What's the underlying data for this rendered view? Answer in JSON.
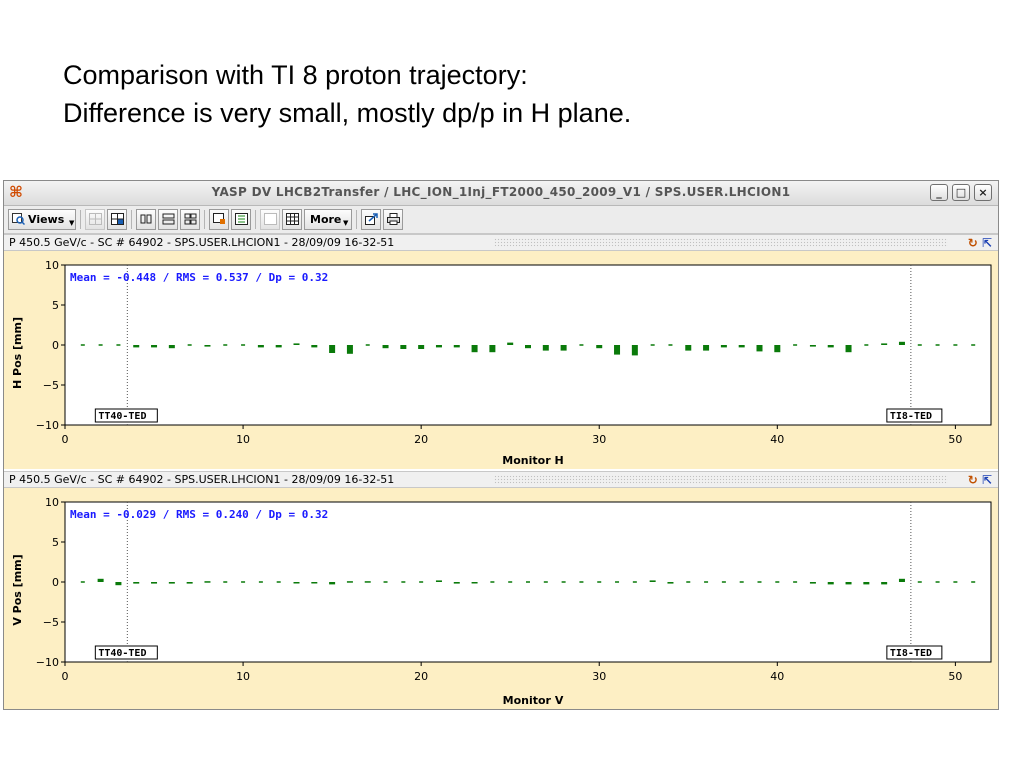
{
  "caption": {
    "line1": "Comparison with TI 8 proton trajectory:",
    "line2": "Difference is very small, mostly dp/p in H plane."
  },
  "window": {
    "title": "YASP DV LHCB2Transfer / LHC_ION_1Inj_FT2000_450_2009_V1 / SPS.USER.LHCION1",
    "icon": "yasp-app-icon",
    "buttons": {
      "minimize": "_",
      "maximize": "□",
      "close": "×"
    }
  },
  "toolbar": {
    "views_label": "Views",
    "more_label": "More"
  },
  "panels": [
    {
      "id": "h",
      "header": "P 450.5 GeV/c - SC # 64902 - SPS.USER.LHCION1 - 28/09/09 16-32-51",
      "stats": "Mean =  -0.448 / RMS =   0.537 / Dp =   0.32",
      "xlabel": "Monitor H",
      "ylabel": "H Pos [mm]",
      "markers": [
        "TT40-TED",
        "TI8-TED"
      ]
    },
    {
      "id": "v",
      "header": "P 450.5 GeV/c - SC # 64902 - SPS.USER.LHCION1 - 28/09/09 16-32-51",
      "stats": "Mean =  -0.029 / RMS =   0.240 / Dp =   0.32",
      "xlabel": "Monitor V",
      "ylabel": "V Pos [mm]",
      "markers": [
        "TT40-TED",
        "TI8-TED"
      ]
    }
  ],
  "chart_data": [
    {
      "type": "bar",
      "xlabel": "Monitor H",
      "ylabel": "H Pos [mm]",
      "xlim": [
        0,
        52
      ],
      "ylim": [
        -10,
        10
      ],
      "xticks": [
        0,
        10,
        20,
        30,
        40,
        50
      ],
      "yticks": [
        -10,
        -5,
        0,
        5,
        10
      ],
      "markers": [
        {
          "label": "TT40-TED",
          "x": 3.5
        },
        {
          "label": "TI8-TED",
          "x": 47.5
        }
      ],
      "x": [
        1,
        2,
        3,
        4,
        5,
        6,
        7,
        8,
        9,
        10,
        11,
        12,
        13,
        14,
        15,
        16,
        17,
        18,
        19,
        20,
        21,
        22,
        23,
        24,
        25,
        26,
        27,
        28,
        29,
        30,
        31,
        32,
        33,
        34,
        35,
        36,
        37,
        38,
        39,
        40,
        41,
        42,
        43,
        44,
        45,
        46,
        47,
        48,
        49,
        50,
        51
      ],
      "values": [
        0,
        0,
        0,
        -0.3,
        -0.3,
        -0.4,
        0,
        -0.2,
        0,
        0,
        -0.3,
        -0.3,
        0.2,
        -0.3,
        -1.0,
        -1.1,
        0,
        -0.4,
        -0.5,
        -0.5,
        -0.3,
        -0.3,
        -0.9,
        -0.9,
        0.3,
        -0.4,
        -0.7,
        -0.7,
        0,
        -0.4,
        -1.2,
        -1.3,
        0,
        0,
        -0.7,
        -0.7,
        -0.3,
        -0.3,
        -0.8,
        -0.9,
        0,
        -0.2,
        -0.3,
        -0.9,
        0,
        0.2,
        0.4,
        0,
        0,
        0,
        0
      ]
    },
    {
      "type": "bar",
      "xlabel": "Monitor V",
      "ylabel": "V Pos [mm]",
      "xlim": [
        0,
        52
      ],
      "ylim": [
        -10,
        10
      ],
      "xticks": [
        0,
        10,
        20,
        30,
        40,
        50
      ],
      "yticks": [
        -10,
        -5,
        0,
        5,
        10
      ],
      "markers": [
        {
          "label": "TT40-TED",
          "x": 3.5
        },
        {
          "label": "TI8-TED",
          "x": 47.5
        }
      ],
      "x": [
        1,
        2,
        3,
        4,
        5,
        6,
        7,
        8,
        9,
        10,
        11,
        12,
        13,
        14,
        15,
        16,
        17,
        18,
        19,
        20,
        21,
        22,
        23,
        24,
        25,
        26,
        27,
        28,
        29,
        30,
        31,
        32,
        33,
        34,
        35,
        36,
        37,
        38,
        39,
        40,
        41,
        42,
        43,
        44,
        45,
        46,
        47,
        48,
        49,
        50,
        51
      ],
      "values": [
        0,
        0.4,
        -0.4,
        -0.2,
        -0.2,
        -0.2,
        -0.2,
        0.1,
        0,
        0,
        0,
        0,
        -0.1,
        -0.1,
        -0.3,
        0.1,
        0.1,
        0,
        0,
        0,
        0.2,
        -0.2,
        -0.1,
        0,
        0,
        0,
        0,
        0,
        0,
        0,
        0,
        0,
        0.2,
        -0.2,
        0,
        0,
        0,
        0,
        0,
        0,
        0,
        -0.2,
        -0.3,
        -0.3,
        -0.3,
        -0.3,
        0.4,
        0,
        0,
        0,
        0
      ]
    }
  ]
}
